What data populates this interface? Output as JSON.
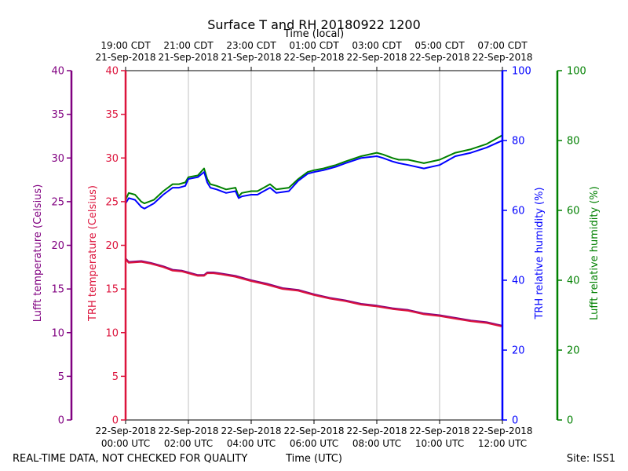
{
  "chart_data": {
    "type": "line",
    "title": "Surface T and RH 20180922 1200",
    "top_xlabel": "Time (local)",
    "xlabel": "Time (UTC)",
    "footer_left": "REAL-TIME DATA, NOT CHECKED FOR QUALITY",
    "footer_right": "Site: ISS1",
    "xlim": [
      0,
      12
    ],
    "x_bottom_ticks": [
      {
        "x": 0,
        "date": "22-Sep-2018",
        "time": "00:00 UTC"
      },
      {
        "x": 2,
        "date": "22-Sep-2018",
        "time": "02:00 UTC"
      },
      {
        "x": 4,
        "date": "22-Sep-2018",
        "time": "04:00 UTC"
      },
      {
        "x": 6,
        "date": "22-Sep-2018",
        "time": "06:00 UTC"
      },
      {
        "x": 8,
        "date": "22-Sep-2018",
        "time": "08:00 UTC"
      },
      {
        "x": 10,
        "date": "22-Sep-2018",
        "time": "10:00 UTC"
      },
      {
        "x": 12,
        "date": "22-Sep-2018",
        "time": "12:00 UTC"
      }
    ],
    "x_top_ticks": [
      {
        "x": 0,
        "time": "19:00 CDT",
        "date": "21-Sep-2018"
      },
      {
        "x": 2,
        "time": "21:00 CDT",
        "date": "21-Sep-2018"
      },
      {
        "x": 4,
        "time": "23:00 CDT",
        "date": "21-Sep-2018"
      },
      {
        "x": 6,
        "time": "01:00 CDT",
        "date": "22-Sep-2018"
      },
      {
        "x": 8,
        "time": "03:00 CDT",
        "date": "22-Sep-2018"
      },
      {
        "x": 10,
        "time": "05:00 CDT",
        "date": "22-Sep-2018"
      },
      {
        "x": 12,
        "time": "07:00 CDT",
        "date": "22-Sep-2018"
      }
    ],
    "axes": {
      "lufft_temp": {
        "label": "Lufft temperature (Celsius)",
        "ylim": [
          0,
          40
        ],
        "ticks": [
          "0",
          "5",
          "10",
          "15",
          "20",
          "25",
          "30",
          "35",
          "40"
        ],
        "color": "#800080"
      },
      "trh_temp": {
        "label": "TRH temperature (Celsius)",
        "ylim": [
          0,
          40
        ],
        "ticks": [
          "0",
          "5",
          "10",
          "15",
          "20",
          "25",
          "30",
          "35",
          "40"
        ],
        "color": "#dc143c"
      },
      "trh_rh": {
        "label": "TRH relative humidity (%)",
        "ylim": [
          0,
          100
        ],
        "ticks": [
          "0",
          "20",
          "40",
          "60",
          "80",
          "100"
        ],
        "color": "#0000ff"
      },
      "lufft_rh": {
        "label": "Lufft relative humidity (%)",
        "ylim": [
          0,
          100
        ],
        "ticks": [
          "0",
          "20",
          "40",
          "60",
          "80",
          "100"
        ],
        "color": "#008000"
      }
    },
    "grid": "vertical",
    "series": [
      {
        "axis": "lufft_rh",
        "color": "#008000",
        "x": [
          0,
          0.1,
          0.3,
          0.5,
          0.6,
          0.9,
          1.2,
          1.5,
          1.7,
          1.9,
          2.0,
          2.3,
          2.5,
          2.6,
          2.7,
          2.9,
          3.2,
          3.5,
          3.6,
          3.7,
          4.0,
          4.2,
          4.4,
          4.6,
          4.8,
          5.2,
          5.5,
          5.8,
          6.0,
          6.3,
          6.5,
          6.7,
          7.0,
          7.5,
          8.0,
          8.2,
          8.5,
          8.7,
          9.0,
          9.5,
          10.0,
          10.5,
          11.0,
          11.5,
          12.0
        ],
        "values": [
          63,
          65,
          64.5,
          62.5,
          62,
          63,
          65.5,
          67.5,
          67.5,
          68,
          69.5,
          70,
          72,
          69,
          67.5,
          67,
          66,
          66.5,
          64,
          65,
          65.5,
          65.5,
          66.5,
          67.5,
          66,
          66.5,
          69,
          71,
          71.5,
          72,
          72.5,
          73,
          74,
          75.5,
          76.5,
          76,
          75,
          74.5,
          74.5,
          73.5,
          74.5,
          76.5,
          77.5,
          79,
          81.5
        ]
      },
      {
        "axis": "trh_rh",
        "color": "#0000ff",
        "x": [
          0,
          0.1,
          0.3,
          0.5,
          0.6,
          0.9,
          1.2,
          1.5,
          1.7,
          1.9,
          2.0,
          2.3,
          2.5,
          2.6,
          2.7,
          2.9,
          3.2,
          3.5,
          3.6,
          3.7,
          4.0,
          4.2,
          4.4,
          4.6,
          4.8,
          5.2,
          5.5,
          5.8,
          6.0,
          6.3,
          6.5,
          6.7,
          7.0,
          7.5,
          8.0,
          8.2,
          8.5,
          8.7,
          9.0,
          9.5,
          10.0,
          10.5,
          11.0,
          11.5,
          12.0
        ],
        "values": [
          62,
          63.5,
          63,
          61,
          60.5,
          62,
          64.5,
          66.5,
          66.5,
          67,
          69,
          69.5,
          71,
          68,
          66.5,
          66,
          65,
          65.5,
          63.5,
          64,
          64.5,
          64.5,
          65.5,
          66.5,
          65,
          65.5,
          68.5,
          70.5,
          71,
          71.5,
          72,
          72.5,
          73.5,
          75,
          75.5,
          75,
          74,
          73.5,
          73,
          72,
          73,
          75.5,
          76.5,
          78,
          80
        ]
      },
      {
        "axis": "lufft_temp",
        "color": "#800080",
        "x": [
          0,
          0.1,
          0.5,
          0.8,
          1.2,
          1.5,
          1.8,
          2.0,
          2.3,
          2.5,
          2.6,
          2.8,
          3.0,
          3.5,
          4.0,
          4.5,
          5.0,
          5.5,
          6.0,
          6.5,
          7.0,
          7.5,
          8.0,
          8.5,
          9.0,
          9.5,
          10.0,
          10.5,
          11.0,
          11.5,
          12.0
        ],
        "values": [
          18.5,
          18.1,
          18.2,
          18.0,
          17.6,
          17.2,
          17.1,
          16.9,
          16.6,
          16.6,
          16.9,
          16.9,
          16.8,
          16.5,
          16.0,
          15.6,
          15.1,
          14.9,
          14.4,
          14.0,
          13.7,
          13.3,
          13.1,
          12.8,
          12.6,
          12.2,
          12.0,
          11.7,
          11.4,
          11.2,
          10.8
        ]
      },
      {
        "axis": "trh_temp",
        "color": "#dc143c",
        "x": [
          0,
          0.1,
          0.5,
          0.8,
          1.2,
          1.5,
          1.8,
          2.0,
          2.3,
          2.5,
          2.6,
          2.8,
          3.0,
          3.5,
          4.0,
          4.5,
          5.0,
          5.5,
          6.0,
          6.5,
          7.0,
          7.5,
          8.0,
          8.5,
          9.0,
          9.5,
          10.0,
          10.5,
          11.0,
          11.5,
          12.0
        ],
        "values": [
          18.4,
          18.0,
          18.1,
          17.9,
          17.5,
          17.1,
          17.0,
          16.8,
          16.5,
          16.5,
          16.8,
          16.8,
          16.7,
          16.4,
          15.9,
          15.5,
          15.0,
          14.8,
          14.3,
          13.9,
          13.6,
          13.2,
          13.0,
          12.7,
          12.5,
          12.1,
          11.9,
          11.6,
          11.3,
          11.1,
          10.7
        ]
      }
    ]
  }
}
